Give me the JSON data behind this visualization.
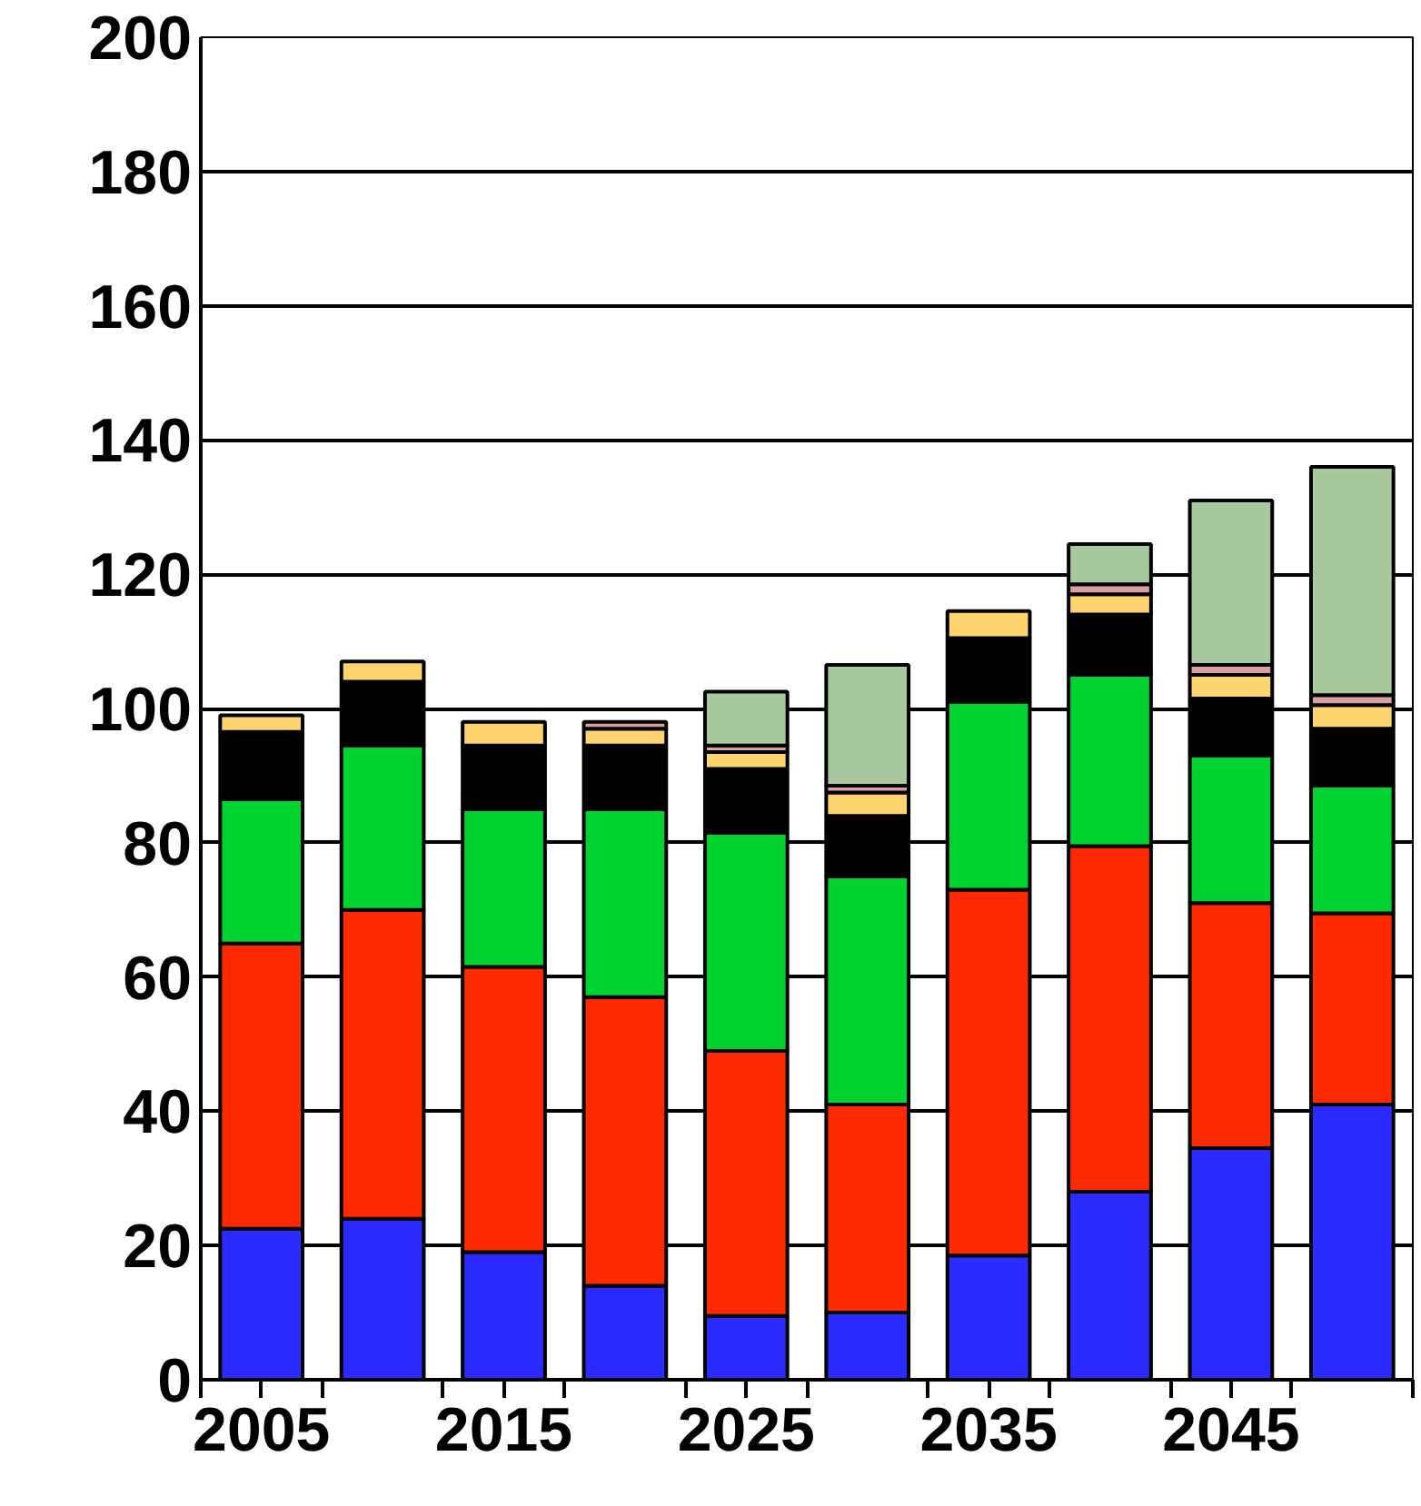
{
  "chart_data": {
    "type": "bar",
    "stacked": true,
    "x": [
      2005,
      2010,
      2015,
      2020,
      2025,
      2030,
      2035,
      2040,
      2045,
      2050
    ],
    "series": [
      {
        "color": "#2b2bff",
        "values": [
          22.5,
          24,
          19,
          14,
          9.5,
          10,
          18.5,
          28,
          34.5,
          41
        ]
      },
      {
        "color": "#ff2a00",
        "values": [
          42.5,
          46,
          42.5,
          43,
          39.5,
          31,
          54.5,
          51.5,
          36.5,
          28.5
        ]
      },
      {
        "color": "#00d232",
        "values": [
          21.5,
          24.5,
          23.5,
          28,
          32.5,
          34,
          28,
          25.5,
          22,
          19
        ]
      },
      {
        "color": "#000000",
        "values": [
          10,
          9.5,
          9.5,
          9.5,
          9.5,
          9,
          9.5,
          9,
          8.5,
          8.5
        ]
      },
      {
        "color": "#ffd36e",
        "values": [
          2.5,
          3,
          3.5,
          2.5,
          2.5,
          3.5,
          4,
          3,
          3.5,
          3.5
        ]
      },
      {
        "color": "#d9a0a0",
        "values": [
          null,
          null,
          null,
          1,
          1,
          1,
          null,
          1.5,
          1.5,
          1.5
        ]
      },
      {
        "color": "#a8c8a0",
        "values": [
          null,
          null,
          null,
          null,
          8,
          18,
          null,
          6,
          24.5,
          34
        ]
      }
    ],
    "xlim": [
      2002.5,
      2052.5
    ],
    "xticks": [
      {
        "value": 2002.5,
        "label": null
      },
      2005,
      {
        "value": 2007.5,
        "label": null
      },
      {
        "value": 2012.5,
        "label": null
      },
      2015,
      {
        "value": 2017.5,
        "label": null
      },
      {
        "value": 2022.5,
        "label": null
      },
      2025,
      {
        "value": 2027.5,
        "label": null
      },
      {
        "value": 2032.5,
        "label": null
      },
      2035,
      {
        "value": 2037.5,
        "label": null
      },
      {
        "value": 2042.5,
        "label": null
      },
      2045,
      {
        "value": 2047.5,
        "label": null
      },
      {
        "value": 2052.5,
        "label": null
      }
    ],
    "ylim": [
      0,
      200
    ],
    "yticks": [
      0,
      20,
      40,
      60,
      80,
      100,
      120,
      140,
      160,
      180,
      200
    ],
    "grid": "y"
  }
}
